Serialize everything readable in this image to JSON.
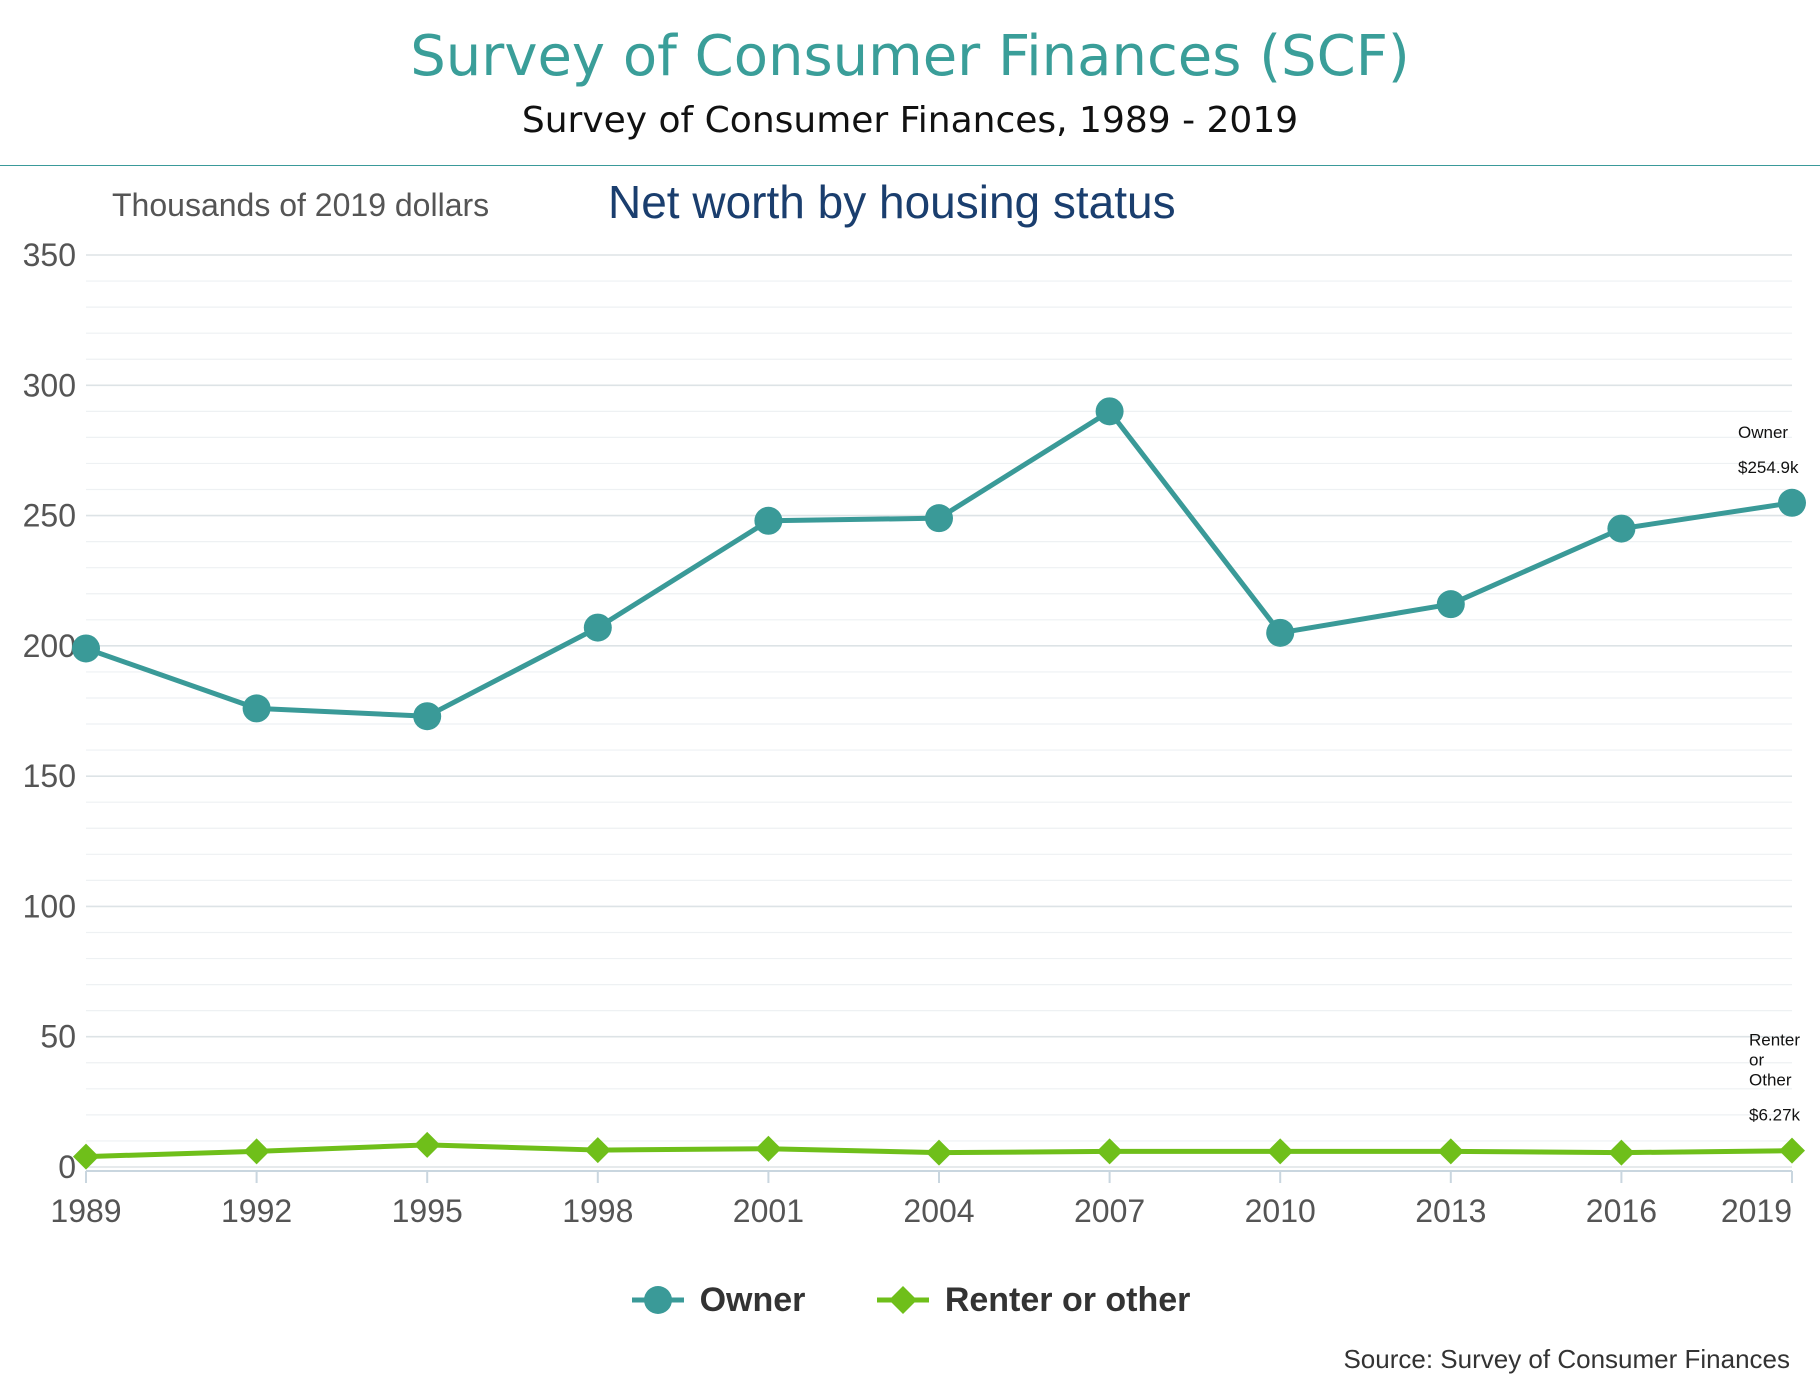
{
  "header": {
    "title": "Survey of Consumer Finances (SCF)",
    "subtitle": "Survey of Consumer Finances, 1989 - 2019"
  },
  "source": "Source: Survey of Consumer Finances",
  "colors": {
    "owner": "#3a9a98",
    "renter": "#6fbf1a",
    "title": "#1a3e6e",
    "accent": "#3a9e99"
  },
  "chart_data": {
    "type": "line",
    "title": "Net worth by housing status",
    "ylabel": "Thousands of 2019 dollars",
    "x": [
      "1989",
      "1992",
      "1995",
      "1998",
      "2001",
      "2004",
      "2007",
      "2010",
      "2013",
      "2016",
      "2019"
    ],
    "y_ticks": [
      "0",
      "50",
      "100",
      "150",
      "200",
      "250",
      "300",
      "350"
    ],
    "ylim": [
      0,
      350
    ],
    "grid": true,
    "legend_position": "bottom",
    "series": [
      {
        "name": "Owner",
        "marker": "circle",
        "values": [
          199,
          176,
          173,
          207,
          248,
          249,
          290,
          205,
          216,
          245,
          254.9
        ]
      },
      {
        "name": "Renter or other",
        "marker": "diamond",
        "values": [
          4,
          6,
          8.5,
          6.5,
          7,
          5.5,
          6,
          6,
          6,
          5.5,
          6.27
        ]
      }
    ],
    "end_labels": [
      {
        "series": "Owner",
        "lines": [
          "Owner"
        ],
        "value": "$254.9k"
      },
      {
        "series": "Renter or other",
        "lines": [
          "Renter",
          "or",
          "Other"
        ],
        "value": "$6.27k"
      }
    ]
  }
}
